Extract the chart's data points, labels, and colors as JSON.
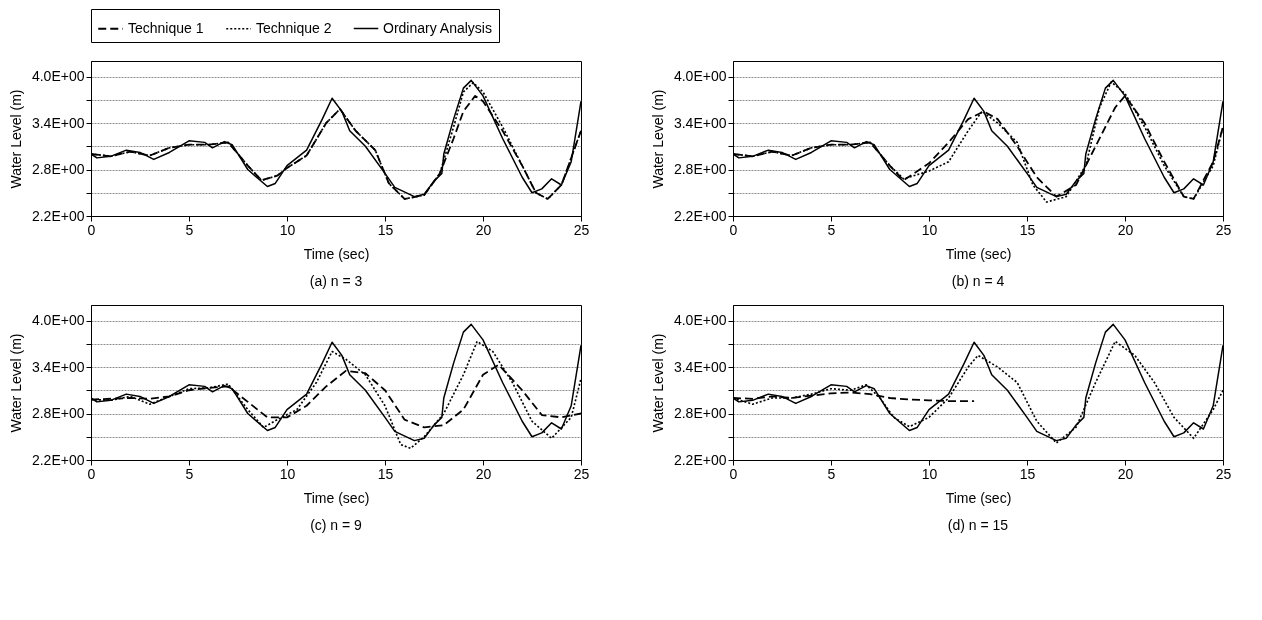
{
  "chart_data": [
    {
      "type": "line",
      "title": "(a) n = 3",
      "xlabel": "Time (sec)",
      "ylabel": "Water Level (m)",
      "xlim": [
        0,
        25
      ],
      "xticks": [
        0,
        5,
        10,
        15,
        20,
        25
      ],
      "ylim": [
        2.2,
        4.2
      ],
      "yticks": [
        {
          "value": 2.2,
          "label": "2.2E+00"
        },
        {
          "value": 2.5,
          "label": null
        },
        {
          "value": 2.8,
          "label": "2.8E+00"
        },
        {
          "value": 3.1,
          "label": null
        },
        {
          "value": 3.4,
          "label": "3.4E+00"
        },
        {
          "value": 3.7,
          "label": null
        },
        {
          "value": 4.0,
          "label": "4.0E+00"
        }
      ],
      "grid": "y",
      "legend": "top",
      "marker": "none",
      "series": [
        {
          "name": "Technique 1",
          "color": "#000000",
          "line_style": "dashed",
          "x": [
            0,
            1,
            2,
            3,
            4,
            5,
            6,
            7,
            8,
            8.7,
            9.5,
            10,
            11,
            12,
            12.7,
            13.5,
            14.5,
            15.2,
            16,
            17,
            17.8,
            18.5,
            19,
            19.6,
            20,
            21,
            22,
            22.7,
            23.3,
            24,
            25
          ],
          "values": [
            3.0,
            2.97,
            3.03,
            2.98,
            3.08,
            3.12,
            3.12,
            3.15,
            2.85,
            2.66,
            2.72,
            2.82,
            2.98,
            3.4,
            3.58,
            3.3,
            3.05,
            2.62,
            2.42,
            2.47,
            2.75,
            3.2,
            3.55,
            3.75,
            3.68,
            3.3,
            2.85,
            2.5,
            2.42,
            2.6,
            3.3
          ]
        },
        {
          "name": "Technique 2",
          "color": "#000000",
          "line_style": "dotted",
          "x": [
            0,
            1,
            2,
            3,
            4,
            5,
            6,
            7,
            8,
            8.7,
            9.5,
            10,
            11,
            12,
            12.7,
            13.5,
            14.5,
            15.2,
            16,
            17,
            17.8,
            18.5,
            19,
            19.5,
            20,
            21,
            22,
            22.7,
            23.3,
            24,
            25
          ],
          "values": [
            3.0,
            2.97,
            3.03,
            2.98,
            3.08,
            3.12,
            3.12,
            3.15,
            2.85,
            2.66,
            2.72,
            2.82,
            2.98,
            3.4,
            3.58,
            3.3,
            3.05,
            2.62,
            2.42,
            2.47,
            2.75,
            3.35,
            3.8,
            3.92,
            3.8,
            3.35,
            2.85,
            2.5,
            2.42,
            2.6,
            3.3
          ]
        },
        {
          "name": "Ordinary Analysis",
          "color": "#000000",
          "line_style": "solid",
          "x": [
            0,
            0.3,
            1,
            1.8,
            2.5,
            3.2,
            4,
            5,
            5.8,
            6.2,
            6.8,
            7.2,
            8,
            9,
            9.4,
            10,
            11,
            11.8,
            12.3,
            12.8,
            13.2,
            14,
            15,
            15.5,
            16.5,
            17,
            17.5,
            17.9,
            18,
            18.5,
            19,
            19.4,
            20,
            21,
            22,
            22.5,
            23,
            23.5,
            24,
            24.5,
            25
          ],
          "values": [
            3.0,
            2.95,
            2.97,
            3.05,
            3.02,
            2.93,
            3.02,
            3.17,
            3.15,
            3.08,
            3.16,
            3.12,
            2.8,
            2.58,
            2.62,
            2.85,
            3.05,
            3.45,
            3.72,
            3.55,
            3.3,
            3.1,
            2.75,
            2.57,
            2.45,
            2.48,
            2.65,
            2.75,
            3.0,
            3.45,
            3.85,
            3.95,
            3.75,
            3.2,
            2.7,
            2.5,
            2.55,
            2.68,
            2.6,
            2.9,
            3.68
          ]
        }
      ]
    },
    {
      "type": "line",
      "title": "(b) n = 4",
      "xlabel": "Time (sec)",
      "ylabel": "Water Level (m)",
      "xlim": [
        0,
        25
      ],
      "xticks": [
        0,
        5,
        10,
        15,
        20,
        25
      ],
      "ylim": [
        2.2,
        4.2
      ],
      "yticks": [
        {
          "value": 2.2,
          "label": "2.2E+00"
        },
        {
          "value": 2.5,
          "label": null
        },
        {
          "value": 2.8,
          "label": "2.8E+00"
        },
        {
          "value": 3.1,
          "label": null
        },
        {
          "value": 3.4,
          "label": "3.4E+00"
        },
        {
          "value": 3.7,
          "label": null
        },
        {
          "value": 4.0,
          "label": "4.0E+00"
        }
      ],
      "grid": "y",
      "legend": "top",
      "marker": "none",
      "series": [
        {
          "name": "Technique 1",
          "color": "#000000",
          "line_style": "dashed",
          "x": [
            0,
            1,
            2,
            3,
            4,
            5,
            6,
            7,
            8,
            8.7,
            10,
            11,
            12,
            12.8,
            13.5,
            14.5,
            15.5,
            16.5,
            17.5,
            18.5,
            19.5,
            20,
            21,
            22,
            23,
            23.5,
            24.5,
            25
          ],
          "values": [
            3.0,
            2.97,
            3.03,
            2.98,
            3.08,
            3.12,
            3.12,
            3.15,
            2.85,
            2.66,
            2.88,
            3.15,
            3.45,
            3.55,
            3.45,
            3.1,
            2.7,
            2.45,
            2.6,
            3.1,
            3.6,
            3.75,
            3.4,
            2.9,
            2.45,
            2.42,
            2.9,
            3.35
          ]
        },
        {
          "name": "Technique 2",
          "color": "#000000",
          "line_style": "dotted",
          "x": [
            0,
            1,
            2,
            3,
            4,
            5,
            6,
            7,
            8,
            8.7,
            10,
            11,
            12,
            12.7,
            13.5,
            14.5,
            15.3,
            16,
            17,
            18,
            18.7,
            19.3,
            20,
            21,
            22,
            23,
            23.5,
            24.5,
            25
          ],
          "values": [
            3.0,
            2.97,
            3.03,
            2.98,
            3.08,
            3.12,
            3.12,
            3.15,
            2.85,
            2.68,
            2.78,
            2.9,
            3.3,
            3.55,
            3.4,
            3.15,
            2.6,
            2.38,
            2.45,
            2.85,
            3.6,
            3.93,
            3.78,
            3.35,
            2.85,
            2.45,
            2.42,
            2.85,
            3.35
          ]
        },
        {
          "name": "Ordinary Analysis",
          "color": "#000000",
          "line_style": "solid",
          "x": [
            0,
            0.3,
            1,
            1.8,
            2.5,
            3.2,
            4,
            5,
            5.8,
            6.2,
            6.8,
            7.2,
            8,
            9,
            9.4,
            10,
            11,
            11.8,
            12.3,
            12.8,
            13.2,
            14,
            15,
            15.5,
            16.5,
            17,
            17.5,
            17.9,
            18,
            18.5,
            19,
            19.4,
            20,
            21,
            22,
            22.5,
            23,
            23.5,
            24,
            24.5,
            25
          ],
          "values": [
            3.0,
            2.95,
            2.97,
            3.05,
            3.02,
            2.93,
            3.02,
            3.17,
            3.15,
            3.08,
            3.16,
            3.12,
            2.8,
            2.58,
            2.62,
            2.85,
            3.05,
            3.45,
            3.72,
            3.55,
            3.3,
            3.1,
            2.75,
            2.57,
            2.45,
            2.48,
            2.65,
            2.75,
            3.0,
            3.45,
            3.85,
            3.95,
            3.75,
            3.2,
            2.7,
            2.5,
            2.55,
            2.68,
            2.6,
            2.9,
            3.68
          ]
        }
      ]
    },
    {
      "type": "line",
      "title": "(c) n = 9",
      "xlabel": "Time (sec)",
      "ylabel": "Water Level (m)",
      "xlim": [
        0,
        25
      ],
      "xticks": [
        0,
        5,
        10,
        15,
        20,
        25
      ],
      "ylim": [
        2.2,
        4.2
      ],
      "yticks": [
        {
          "value": 2.2,
          "label": "2.2E+00"
        },
        {
          "value": 2.5,
          "label": null
        },
        {
          "value": 2.8,
          "label": "2.8E+00"
        },
        {
          "value": 3.1,
          "label": null
        },
        {
          "value": 3.4,
          "label": "3.4E+00"
        },
        {
          "value": 3.7,
          "label": null
        },
        {
          "value": 4.0,
          "label": "4.0E+00"
        }
      ],
      "grid": "y",
      "legend": "top",
      "marker": "none",
      "series": [
        {
          "name": "Technique 1",
          "color": "#000000",
          "line_style": "dashed",
          "x": [
            0,
            2,
            3,
            4,
            5,
            6,
            7,
            8,
            9,
            10,
            11,
            12,
            13,
            14,
            15,
            16,
            17,
            18,
            19,
            20,
            20.8,
            22,
            23,
            24,
            25
          ],
          "values": [
            2.98,
            3.0,
            2.99,
            3.02,
            3.1,
            3.13,
            3.15,
            2.95,
            2.75,
            2.75,
            2.9,
            3.15,
            3.35,
            3.32,
            3.1,
            2.72,
            2.62,
            2.65,
            2.85,
            3.3,
            3.43,
            3.1,
            2.78,
            2.75,
            2.8
          ]
        },
        {
          "name": "Technique 2",
          "color": "#000000",
          "line_style": "dotted",
          "x": [
            0,
            1,
            2,
            3,
            4,
            5,
            6,
            7,
            8,
            8.8,
            9.5,
            10.5,
            11.5,
            12.3,
            13,
            14,
            15,
            15.8,
            16.3,
            17,
            18,
            19,
            19.7,
            20.5,
            21.5,
            22.5,
            23.5,
            24.5,
            25
          ],
          "values": [
            2.98,
            2.97,
            3.02,
            2.92,
            3.02,
            3.12,
            3.13,
            3.18,
            2.85,
            2.62,
            2.72,
            2.85,
            3.2,
            3.6,
            3.5,
            3.3,
            2.9,
            2.4,
            2.35,
            2.5,
            2.8,
            3.3,
            3.73,
            3.6,
            3.2,
            2.7,
            2.48,
            2.75,
            3.25
          ]
        },
        {
          "name": "Ordinary Analysis",
          "color": "#000000",
          "line_style": "solid",
          "x": [
            0,
            0.3,
            1,
            1.8,
            2.5,
            3.2,
            4,
            5,
            5.8,
            6.2,
            6.8,
            7.2,
            8,
            9,
            9.4,
            10,
            11,
            11.8,
            12.3,
            12.8,
            13.2,
            14,
            15,
            15.5,
            16.5,
            17,
            17.5,
            17.9,
            18,
            18.5,
            19,
            19.4,
            20,
            21,
            22,
            22.5,
            23,
            23.5,
            24,
            24.5,
            25
          ],
          "values": [
            3.0,
            2.95,
            2.97,
            3.05,
            3.02,
            2.93,
            3.02,
            3.17,
            3.15,
            3.08,
            3.16,
            3.12,
            2.8,
            2.58,
            2.62,
            2.85,
            3.05,
            3.45,
            3.72,
            3.55,
            3.3,
            3.1,
            2.75,
            2.57,
            2.45,
            2.48,
            2.65,
            2.75,
            3.0,
            3.45,
            3.85,
            3.95,
            3.75,
            3.2,
            2.7,
            2.5,
            2.55,
            2.68,
            2.6,
            2.9,
            3.68
          ]
        }
      ]
    },
    {
      "type": "line",
      "title": "(d) n = 15",
      "xlabel": "Time (sec)",
      "ylabel": "Water Level (m)",
      "xlim": [
        0,
        25
      ],
      "xticks": [
        0,
        5,
        10,
        15,
        20,
        25
      ],
      "ylim": [
        2.2,
        4.2
      ],
      "yticks": [
        {
          "value": 2.2,
          "label": "2.2E+00"
        },
        {
          "value": 2.5,
          "label": null
        },
        {
          "value": 2.8,
          "label": "2.8E+00"
        },
        {
          "value": 3.1,
          "label": null
        },
        {
          "value": 3.4,
          "label": "3.4E+00"
        },
        {
          "value": 3.7,
          "label": null
        },
        {
          "value": 4.0,
          "label": "4.0E+00"
        }
      ],
      "grid": "y",
      "legend": "top",
      "marker": "none",
      "series": [
        {
          "name": "Technique 1",
          "color": "#000000",
          "line_style": "dashed",
          "x": [
            0,
            1,
            2,
            3,
            4,
            5,
            6,
            7,
            8,
            9,
            10,
            11,
            12.3
          ],
          "values": [
            3.0,
            2.99,
            3.02,
            3.0,
            3.03,
            3.06,
            3.07,
            3.05,
            3.0,
            2.98,
            2.97,
            2.96,
            2.96
          ]
        },
        {
          "name": "Technique 2",
          "color": "#000000",
          "line_style": "dotted",
          "x": [
            0,
            1,
            2,
            3,
            4,
            5,
            6,
            6.8,
            7.5,
            8.2,
            9,
            10,
            11,
            12,
            12.5,
            13.5,
            14.5,
            15.5,
            16.5,
            17.5,
            18.5,
            19.5,
            20.5,
            21.5,
            22.5,
            23.5,
            24.5,
            25
          ],
          "values": [
            3.0,
            2.92,
            3.0,
            3.0,
            3.05,
            3.12,
            3.1,
            3.17,
            3.0,
            2.75,
            2.63,
            2.75,
            3.0,
            3.4,
            3.55,
            3.4,
            3.2,
            2.7,
            2.42,
            2.62,
            3.2,
            3.73,
            3.55,
            3.2,
            2.75,
            2.48,
            2.85,
            3.1
          ]
        },
        {
          "name": "Ordinary Analysis",
          "color": "#000000",
          "line_style": "solid",
          "x": [
            0,
            0.3,
            1,
            1.8,
            2.5,
            3.2,
            4,
            5,
            5.8,
            6.2,
            6.8,
            7.2,
            8,
            9,
            9.4,
            10,
            11,
            11.8,
            12.3,
            12.8,
            13.2,
            14,
            15,
            15.5,
            16.5,
            17,
            17.5,
            17.9,
            18,
            18.5,
            19,
            19.4,
            20,
            21,
            22,
            22.5,
            23,
            23.5,
            24,
            24.5,
            25
          ],
          "values": [
            3.0,
            2.95,
            2.97,
            3.05,
            3.02,
            2.93,
            3.02,
            3.17,
            3.15,
            3.08,
            3.16,
            3.12,
            2.8,
            2.58,
            2.62,
            2.85,
            3.05,
            3.45,
            3.72,
            3.55,
            3.3,
            3.1,
            2.75,
            2.57,
            2.45,
            2.48,
            2.65,
            2.75,
            3.0,
            3.45,
            3.85,
            3.95,
            3.75,
            3.2,
            2.7,
            2.5,
            2.55,
            2.68,
            2.6,
            2.9,
            3.68
          ]
        }
      ]
    }
  ]
}
